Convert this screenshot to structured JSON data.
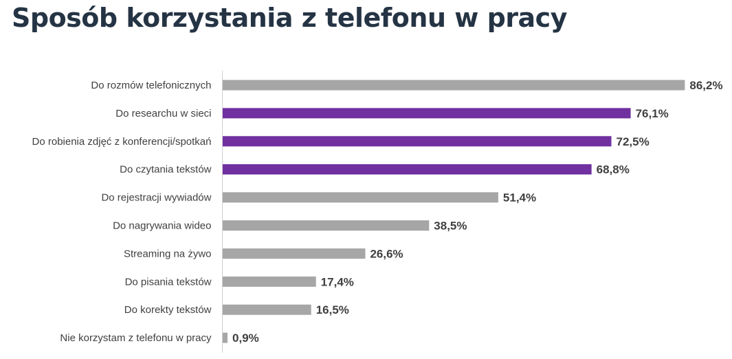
{
  "colors": {
    "title": "#253444",
    "highlight": "#7030A0",
    "default": "#A6A6A6",
    "axis": "#D0D0D0",
    "text": "#404040"
  },
  "chart_data": {
    "type": "bar",
    "orientation": "horizontal",
    "title": "Sposób korzystania z telefonu w pracy",
    "xlabel": "",
    "ylabel": "",
    "xlim": [
      0,
      100
    ],
    "grid": false,
    "legend": "none",
    "categories": [
      "Do rozmów telefonicznych",
      "Do researchu w sieci",
      "Do robienia zdjęć z konferencji/spotkań",
      "Do czytania tekstów",
      "Do rejestracji wywiadów",
      "Do nagrywania wideo",
      "Streaming na żywo",
      "Do pisania tekstów",
      "Do korekty tekstów",
      "Nie korzystam z telefonu w pracy"
    ],
    "values": [
      86.2,
      76.1,
      72.5,
      68.8,
      51.4,
      38.5,
      26.6,
      17.4,
      16.5,
      0.9
    ],
    "value_labels": [
      "86,2%",
      "76,1%",
      "72,5%",
      "68,8%",
      "51,4%",
      "38,5%",
      "26,6%",
      "17,4%",
      "16,5%",
      "0,9%"
    ],
    "highlighted": [
      false,
      true,
      true,
      true,
      false,
      false,
      false,
      false,
      false,
      false
    ]
  }
}
